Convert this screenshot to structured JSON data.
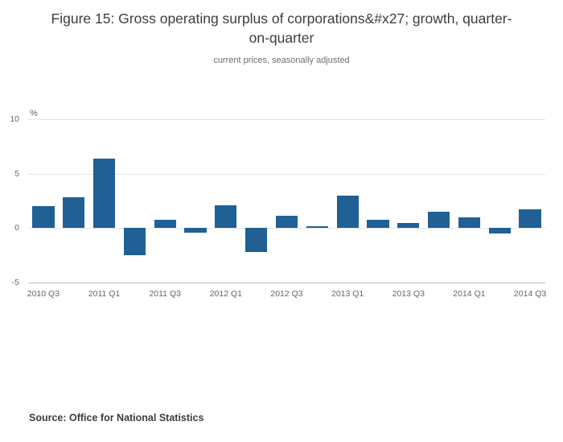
{
  "title": "Figure 15: Gross operating surplus of corporations&#x27; growth, quarter-on-quarter",
  "subtitle": "current prices, seasonally adjusted",
  "source": "Source: Office for National Statistics",
  "chart_data": {
    "type": "bar",
    "title": "Figure 15: Gross operating surplus of corporations&#x27; growth, quarter-on-quarter",
    "subtitle": "current prices, seasonally adjusted",
    "unit_label": "%",
    "categories": [
      "2010 Q3",
      "2010 Q4",
      "2011 Q1",
      "2011 Q2",
      "2011 Q3",
      "2011 Q4",
      "2012 Q1",
      "2012 Q2",
      "2012 Q3",
      "2012 Q4",
      "2013 Q1",
      "2013 Q2",
      "2013 Q3",
      "2013 Q4",
      "2014 Q1",
      "2014 Q2",
      "2014 Q3"
    ],
    "values": [
      2.0,
      2.8,
      6.4,
      -2.5,
      0.8,
      -0.4,
      2.1,
      -2.2,
      1.1,
      0.2,
      3.0,
      0.8,
      0.5,
      1.5,
      1.0,
      -0.5,
      1.7
    ],
    "ylim": [
      -5,
      10
    ],
    "yticks": [
      10,
      5,
      0,
      -5
    ],
    "xtick_every": 2,
    "bar_color": "#206095",
    "grid": true,
    "legend": "none",
    "xlabel": "",
    "ylabel": "%"
  }
}
